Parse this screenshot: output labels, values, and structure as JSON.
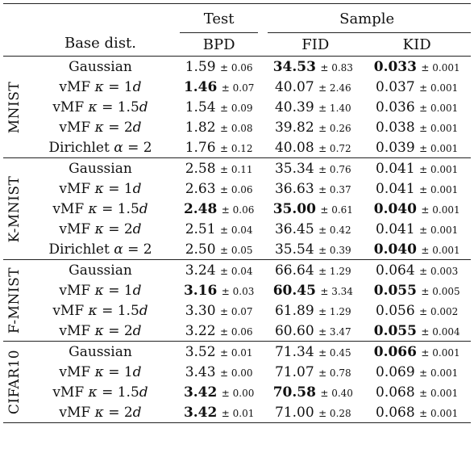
{
  "header": {
    "test_group": "Test",
    "sample_group": "Sample",
    "base_col": "Base dist.",
    "bpd_col": "BPD",
    "fid_col": "FID",
    "kid_col": "KID"
  },
  "groups": [
    {
      "name": "MNIST",
      "rows": [
        {
          "base": "Gaussian",
          "bpd": "1.59",
          "bpd_pm": "± 0.06",
          "bpd_bold": false,
          "fid": "34.53",
          "fid_pm": "± 0.83",
          "fid_bold": true,
          "kid": "0.033",
          "kid_pm": "± 0.001",
          "kid_bold": true
        },
        {
          "base": "vMF κ = 1d",
          "bpd": "1.46",
          "bpd_pm": "± 0.07",
          "bpd_bold": true,
          "fid": "40.07",
          "fid_pm": "± 2.46",
          "fid_bold": false,
          "kid": "0.037",
          "kid_pm": "± 0.001",
          "kid_bold": false
        },
        {
          "base": "vMF κ = 1.5d",
          "bpd": "1.54",
          "bpd_pm": "± 0.09",
          "bpd_bold": false,
          "fid": "40.39",
          "fid_pm": "± 1.40",
          "fid_bold": false,
          "kid": "0.036",
          "kid_pm": "± 0.001",
          "kid_bold": false
        },
        {
          "base": "vMF κ = 2d",
          "bpd": "1.82",
          "bpd_pm": "± 0.08",
          "bpd_bold": false,
          "fid": "39.82",
          "fid_pm": "± 0.26",
          "fid_bold": false,
          "kid": "0.038",
          "kid_pm": "± 0.001",
          "kid_bold": false
        },
        {
          "base": "Dirichlet α = 2",
          "bpd": "1.76",
          "bpd_pm": "± 0.12",
          "bpd_bold": false,
          "fid": "40.08",
          "fid_pm": "± 0.72",
          "fid_bold": false,
          "kid": "0.039",
          "kid_pm": "± 0.001",
          "kid_bold": false
        }
      ]
    },
    {
      "name": "K-MNIST",
      "rows": [
        {
          "base": "Gaussian",
          "bpd": "2.58",
          "bpd_pm": "± 0.11",
          "bpd_bold": false,
          "fid": "35.34",
          "fid_pm": "± 0.76",
          "fid_bold": false,
          "kid": "0.041",
          "kid_pm": "± 0.001",
          "kid_bold": false
        },
        {
          "base": "vMF κ = 1d",
          "bpd": "2.63",
          "bpd_pm": "± 0.06",
          "bpd_bold": false,
          "fid": "36.63",
          "fid_pm": "± 0.37",
          "fid_bold": false,
          "kid": "0.041",
          "kid_pm": "± 0.001",
          "kid_bold": false
        },
        {
          "base": "vMF κ = 1.5d",
          "bpd": "2.48",
          "bpd_pm": "± 0.06",
          "bpd_bold": true,
          "fid": "35.00",
          "fid_pm": "± 0.61",
          "fid_bold": true,
          "kid": "0.040",
          "kid_pm": "± 0.001",
          "kid_bold": true
        },
        {
          "base": "vMF κ = 2d",
          "bpd": "2.51",
          "bpd_pm": "± 0.04",
          "bpd_bold": false,
          "fid": "36.45",
          "fid_pm": "± 0.42",
          "fid_bold": false,
          "kid": "0.041",
          "kid_pm": "± 0.001",
          "kid_bold": false
        },
        {
          "base": "Dirichlet α = 2",
          "bpd": "2.50",
          "bpd_pm": "± 0.05",
          "bpd_bold": false,
          "fid": "35.54",
          "fid_pm": "± 0.39",
          "fid_bold": false,
          "kid": "0.040",
          "kid_pm": "± 0.001",
          "kid_bold": true
        }
      ]
    },
    {
      "name": "F-MNIST",
      "rows": [
        {
          "base": "Gaussian",
          "bpd": "3.24",
          "bpd_pm": "± 0.04",
          "bpd_bold": false,
          "fid": "66.64",
          "fid_pm": "± 1.29",
          "fid_bold": false,
          "kid": "0.064",
          "kid_pm": "± 0.003",
          "kid_bold": false
        },
        {
          "base": "vMF κ = 1d",
          "bpd": "3.16",
          "bpd_pm": "± 0.03",
          "bpd_bold": true,
          "fid": "60.45",
          "fid_pm": "± 3.34",
          "fid_bold": true,
          "kid": "0.055",
          "kid_pm": "± 0.005",
          "kid_bold": true
        },
        {
          "base": "vMF κ = 1.5d",
          "bpd": "3.30",
          "bpd_pm": "± 0.07",
          "bpd_bold": false,
          "fid": "61.89",
          "fid_pm": "± 1.29",
          "fid_bold": false,
          "kid": "0.056",
          "kid_pm": "± 0.002",
          "kid_bold": false
        },
        {
          "base": "vMF κ = 2d",
          "bpd": "3.22",
          "bpd_pm": "± 0.06",
          "bpd_bold": false,
          "fid": "60.60",
          "fid_pm": "± 3.47",
          "fid_bold": false,
          "kid": "0.055",
          "kid_pm": "± 0.004",
          "kid_bold": true
        }
      ]
    },
    {
      "name": "CIFAR10",
      "rows": [
        {
          "base": "Gaussian",
          "bpd": "3.52",
          "bpd_pm": "± 0.01",
          "bpd_bold": false,
          "fid": "71.34",
          "fid_pm": "± 0.45",
          "fid_bold": false,
          "kid": "0.066",
          "kid_pm": "± 0.001",
          "kid_bold": true
        },
        {
          "base": "vMF κ = 1d",
          "bpd": "3.43",
          "bpd_pm": "± 0.00",
          "bpd_bold": false,
          "fid": "71.07",
          "fid_pm": "± 0.78",
          "fid_bold": false,
          "kid": "0.069",
          "kid_pm": "± 0.001",
          "kid_bold": false
        },
        {
          "base": "vMF κ = 1.5d",
          "bpd": "3.42",
          "bpd_pm": "± 0.00",
          "bpd_bold": true,
          "fid": "70.58",
          "fid_pm": "± 0.40",
          "fid_bold": true,
          "kid": "0.068",
          "kid_pm": "± 0.001",
          "kid_bold": false
        },
        {
          "base": "vMF κ = 2d",
          "bpd": "3.42",
          "bpd_pm": "± 0.01",
          "bpd_bold": true,
          "fid": "71.00",
          "fid_pm": "± 0.28",
          "fid_bold": false,
          "kid": "0.068",
          "kid_pm": "± 0.001",
          "kid_bold": false
        }
      ]
    }
  ]
}
